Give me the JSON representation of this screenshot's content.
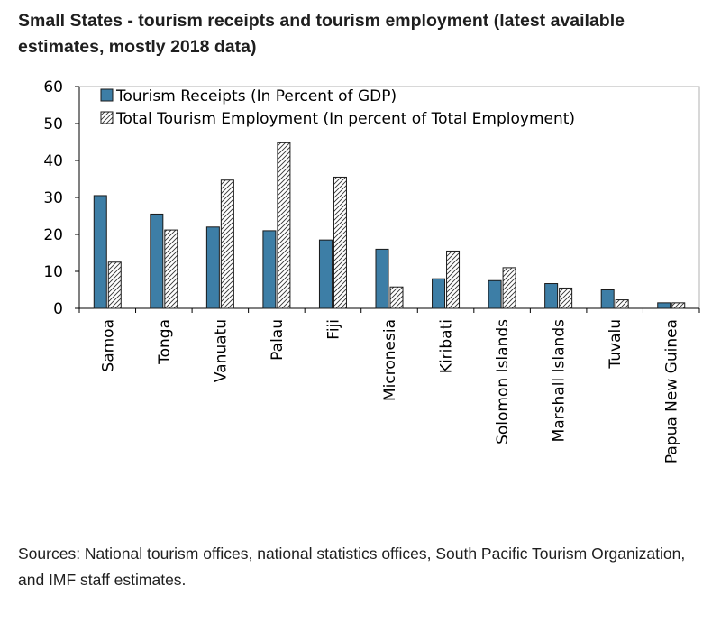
{
  "header": {
    "title": "Small States - tourism receipts and tourism employment (latest available estimates, mostly 2018 data)"
  },
  "footer": {
    "sources": "Sources: National tourism offices, national statistics offices, South Pacific Tourism Organization, and IMF staff estimates."
  },
  "chart_data": {
    "type": "bar",
    "title": "Small States - tourism receipts and tourism employment (latest available estimates, mostly 2018 data)",
    "xlabel": "",
    "ylabel": "",
    "ylim": [
      0,
      60
    ],
    "yticks": [
      0,
      10,
      20,
      30,
      40,
      50,
      60
    ],
    "grid": false,
    "legend_position": "top-left",
    "categories": [
      "Samoa",
      "Tonga",
      "Vanuatu",
      "Palau",
      "Fiji",
      "Micronesia",
      "Kiribati",
      "Solomon Islands",
      "Marshall Islands",
      "Tuvalu",
      "Papua New Guinea"
    ],
    "series": [
      {
        "name": "Tourism Receipts (In Percent of GDP)",
        "style": "solid",
        "color": "#3d7ea6",
        "values": [
          30.5,
          25.5,
          22,
          21,
          18.5,
          16,
          8,
          7.5,
          6.7,
          5,
          1.5
        ]
      },
      {
        "name": "Total Tourism Employment (In percent of Total Employment)",
        "style": "hatched",
        "color": "#ffffff",
        "values": [
          12.5,
          21.2,
          34.7,
          44.8,
          35.5,
          5.8,
          15.5,
          11,
          5.5,
          2.3,
          1.5
        ]
      }
    ]
  }
}
